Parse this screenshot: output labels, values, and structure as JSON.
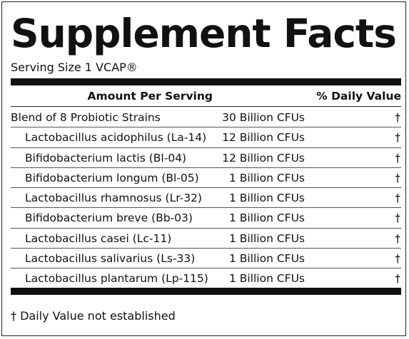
{
  "title": "Supplement Facts",
  "serving_size": "Serving Size 1 VCAP®",
  "header": {
    "amount": "Amount Per Serving",
    "daily_value": "% Daily Value"
  },
  "rows": [
    {
      "name": "Blend of 8 Probiotic Strains",
      "amount": "30 Billion CFUs",
      "dv": "†"
    },
    {
      "name": "Lactobacillus acidophilus (La-14)",
      "amount": "12 Billion CFUs",
      "dv": "†"
    },
    {
      "name": "Bifidobacterium lactis (Bl-04)",
      "amount": "12 Billion CFUs",
      "dv": "†"
    },
    {
      "name": "Bifidobacterium longum (Bl-05)",
      "amount": "1 Billion CFUs",
      "dv": "†"
    },
    {
      "name": "Lactobacillus rhamnosus (Lr-32)",
      "amount": "1 Billion CFUs",
      "dv": "†"
    },
    {
      "name": "Bifidobacterium breve (Bb-03)",
      "amount": "1 Billion CFUs",
      "dv": "†"
    },
    {
      "name": "Lactobacillus casei (Lc-11)",
      "amount": "1 Billion CFUs",
      "dv": "†"
    },
    {
      "name": "Lactobacillus salivarius (Ls-33)",
      "amount": "1 Billion CFUs",
      "dv": "†"
    },
    {
      "name": "Lactobacillus plantarum (Lp-115)",
      "amount": "1 Billion CFUs",
      "dv": "†"
    }
  ],
  "footnote": "† Daily Value not established"
}
